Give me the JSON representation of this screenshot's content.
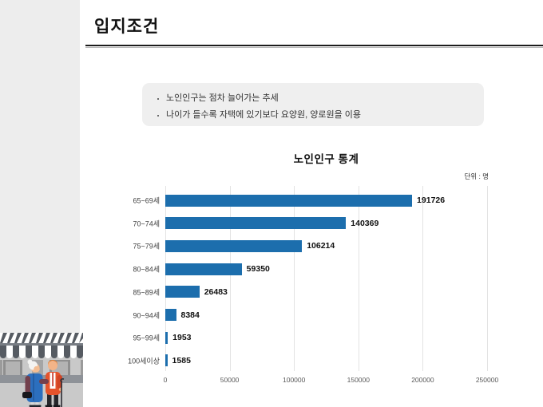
{
  "header": {
    "title": "입지조건"
  },
  "notes": {
    "items": [
      "노인인구는 점차 늘어가는 추세",
      "나이가 들수록 자택에 있기보다 요양원, 양로원을 이용"
    ]
  },
  "chart_data": {
    "type": "bar",
    "orientation": "horizontal",
    "title": "노인인구 통계",
    "unit_label": "단위 : 명",
    "categories": [
      "65~69세",
      "70~74세",
      "75~79세",
      "80~84세",
      "85~89세",
      "90~94세",
      "95~99세",
      "100세이상"
    ],
    "values": [
      191726,
      140369,
      106214,
      59350,
      26483,
      8384,
      1953,
      1585
    ],
    "xlim": [
      0,
      250000
    ],
    "x_ticks": [
      0,
      50000,
      100000,
      150000,
      200000,
      250000
    ],
    "grid": "vertical",
    "legend": "none",
    "value_labels": true,
    "bar_color": "#1c6ead"
  },
  "colors": {
    "sidebar_bg": "#ededed",
    "note_box_bg": "#efefef",
    "bar_blue": "#1c6ead",
    "title_rule": "#1c1c1c"
  },
  "illustration": {
    "name": "elderly-couple-storefront"
  }
}
